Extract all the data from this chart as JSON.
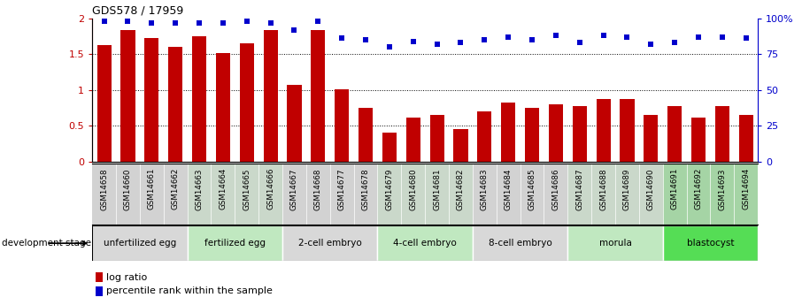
{
  "title": "GDS578 / 17959",
  "samples": [
    "GSM14658",
    "GSM14660",
    "GSM14661",
    "GSM14662",
    "GSM14663",
    "GSM14664",
    "GSM14665",
    "GSM14666",
    "GSM14667",
    "GSM14668",
    "GSM14677",
    "GSM14678",
    "GSM14679",
    "GSM14680",
    "GSM14681",
    "GSM14682",
    "GSM14683",
    "GSM14684",
    "GSM14685",
    "GSM14686",
    "GSM14687",
    "GSM14688",
    "GSM14689",
    "GSM14690",
    "GSM14691",
    "GSM14692",
    "GSM14693",
    "GSM14694"
  ],
  "log_ratio": [
    1.63,
    1.84,
    1.73,
    1.6,
    1.75,
    1.52,
    1.65,
    1.84,
    1.07,
    1.84,
    1.01,
    0.75,
    0.4,
    0.62,
    0.65,
    0.45,
    0.7,
    0.82,
    0.75,
    0.8,
    0.77,
    0.88,
    0.87,
    0.65,
    0.78,
    0.62,
    0.78,
    0.65
  ],
  "percentile": [
    98,
    98,
    97,
    97,
    97,
    97,
    98,
    97,
    92,
    98,
    86,
    85,
    80,
    84,
    82,
    83,
    85,
    87,
    85,
    88,
    83,
    88,
    87,
    82,
    83,
    87,
    87,
    86
  ],
  "bar_color": "#c00000",
  "dot_color": "#0000cc",
  "stage_colors": {
    "unfertilized egg": "#d8d8d8",
    "fertilized egg": "#c0e8c0",
    "2-cell embryo": "#d8d8d8",
    "4-cell embryo": "#c0e8c0",
    "8-cell embryo": "#d8d8d8",
    "morula": "#c0e8c0",
    "blastocyst": "#55dd55"
  },
  "stages": [
    {
      "label": "unfertilized egg",
      "start": 0,
      "end": 4
    },
    {
      "label": "fertilized egg",
      "start": 4,
      "end": 8
    },
    {
      "label": "2-cell embryo",
      "start": 8,
      "end": 12
    },
    {
      "label": "4-cell embryo",
      "start": 12,
      "end": 16
    },
    {
      "label": "8-cell embryo",
      "start": 16,
      "end": 20
    },
    {
      "label": "morula",
      "start": 20,
      "end": 24
    },
    {
      "label": "blastocyst",
      "start": 24,
      "end": 28
    }
  ],
  "ylim_left": [
    0,
    2.0
  ],
  "ylim_right": [
    0,
    100
  ],
  "yticks_left": [
    0,
    0.5,
    1.0,
    1.5,
    2.0
  ],
  "yticks_right": [
    0,
    25,
    50,
    75,
    100
  ],
  "yticklabels_left": [
    "0",
    "0.5",
    "1",
    "1.5",
    "2"
  ],
  "yticklabels_right": [
    "0",
    "25",
    "50",
    "75",
    "100%"
  ],
  "legend_log_ratio": "log ratio",
  "legend_percentile": "percentile rank within the sample",
  "dev_stage_label": "development stage",
  "background_color": "#ffffff",
  "xlabel_bg": "#d0d0d0"
}
